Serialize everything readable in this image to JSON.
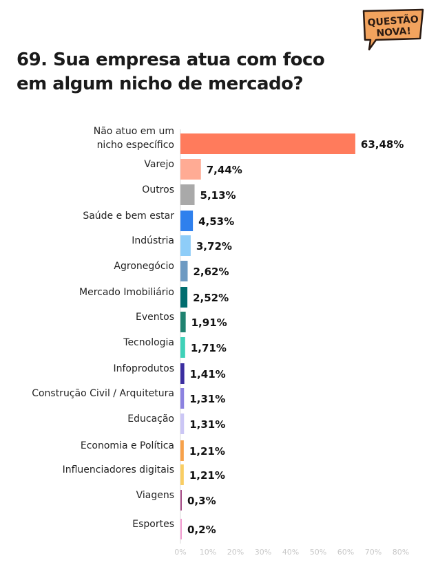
{
  "badge": {
    "line1": "QUESTÃO",
    "line2": "NOVA!",
    "color": "#f2a35e",
    "text_color": "#2a1a12"
  },
  "title_line1": "69. Sua empresa atua com foco",
  "title_line2": "em algum nicho de mercado?",
  "chart_data": {
    "type": "bar",
    "orientation": "horizontal",
    "categories": [
      [
        "Não atuo em um",
        "nicho específico"
      ],
      "Varejo",
      "Outros",
      "Saúde e bem estar",
      "Indústria",
      "Agronegócio",
      "Mercado Imobiliário",
      "Eventos",
      "Tecnologia",
      "Infoprodutos",
      "Construção Civil / Arquitetura",
      "Educação",
      "Economia e Política",
      "Influenciadores digitais",
      "Viagens",
      "Esportes"
    ],
    "values": [
      63.48,
      7.44,
      5.13,
      4.53,
      3.72,
      2.62,
      2.52,
      1.91,
      1.71,
      1.41,
      1.31,
      1.31,
      1.21,
      1.21,
      0.3,
      0.2
    ],
    "value_labels": [
      "63,48%",
      "7,44%",
      "5,13%",
      "4,53%",
      "3,72%",
      "2,62%",
      "2,52%",
      "1,91%",
      "1,71%",
      "1,41%",
      "1,31%",
      "1,31%",
      "1,21%",
      "1,21%",
      "0,3%",
      "0,2%"
    ],
    "colors": [
      "#ff7b5c",
      "#ffab94",
      "#a9a9a9",
      "#2f80ed",
      "#8ecdf8",
      "#6d9ac2",
      "#006d6f",
      "#1f8270",
      "#3fd1b8",
      "#3b2ea0",
      "#8c82e0",
      "#cbc6f5",
      "#f7a14a",
      "#f9cd63",
      "#a64a86",
      "#f29ad0"
    ],
    "xlim": [
      0,
      80
    ],
    "xticks": [
      0,
      10,
      20,
      30,
      40,
      50,
      60,
      70,
      80
    ],
    "xtick_labels": [
      "0%",
      "10%",
      "20%",
      "30%",
      "40%",
      "50%",
      "60%",
      "70%",
      "80%"
    ],
    "grid": false
  }
}
